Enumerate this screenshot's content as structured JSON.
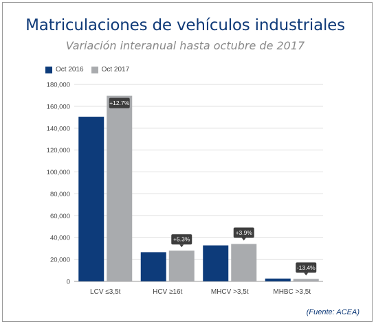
{
  "title": "Matriculaciones de vehículos industriales",
  "subtitle": "Variación interanual hasta octubre de 2017",
  "source": "(Fuente: ACEA)",
  "chart_data": {
    "type": "bar",
    "categories": [
      "LCV ≤3,5t",
      "HCV ≥16t",
      "MHCV >3,5t",
      "MHBC >3,5t"
    ],
    "series": [
      {
        "name": "Oct 2016",
        "color": "#0d3b7a",
        "values": [
          150500,
          26700,
          32900,
          2600
        ]
      },
      {
        "name": "Oct 2017",
        "color": "#a9abae",
        "values": [
          169600,
          28100,
          34200,
          2250
        ]
      }
    ],
    "data_labels": [
      "+12.7%",
      "+5.3%",
      "+3.9%",
      "-13.4%"
    ],
    "y_ticks": [
      "0",
      "20,000",
      "40,000",
      "60,000",
      "80,000",
      "100,000",
      "120,000",
      "140,000",
      "160,000",
      "180,000"
    ],
    "ylim": [
      0,
      180000
    ],
    "legend_position": "top-left",
    "grid": true
  }
}
